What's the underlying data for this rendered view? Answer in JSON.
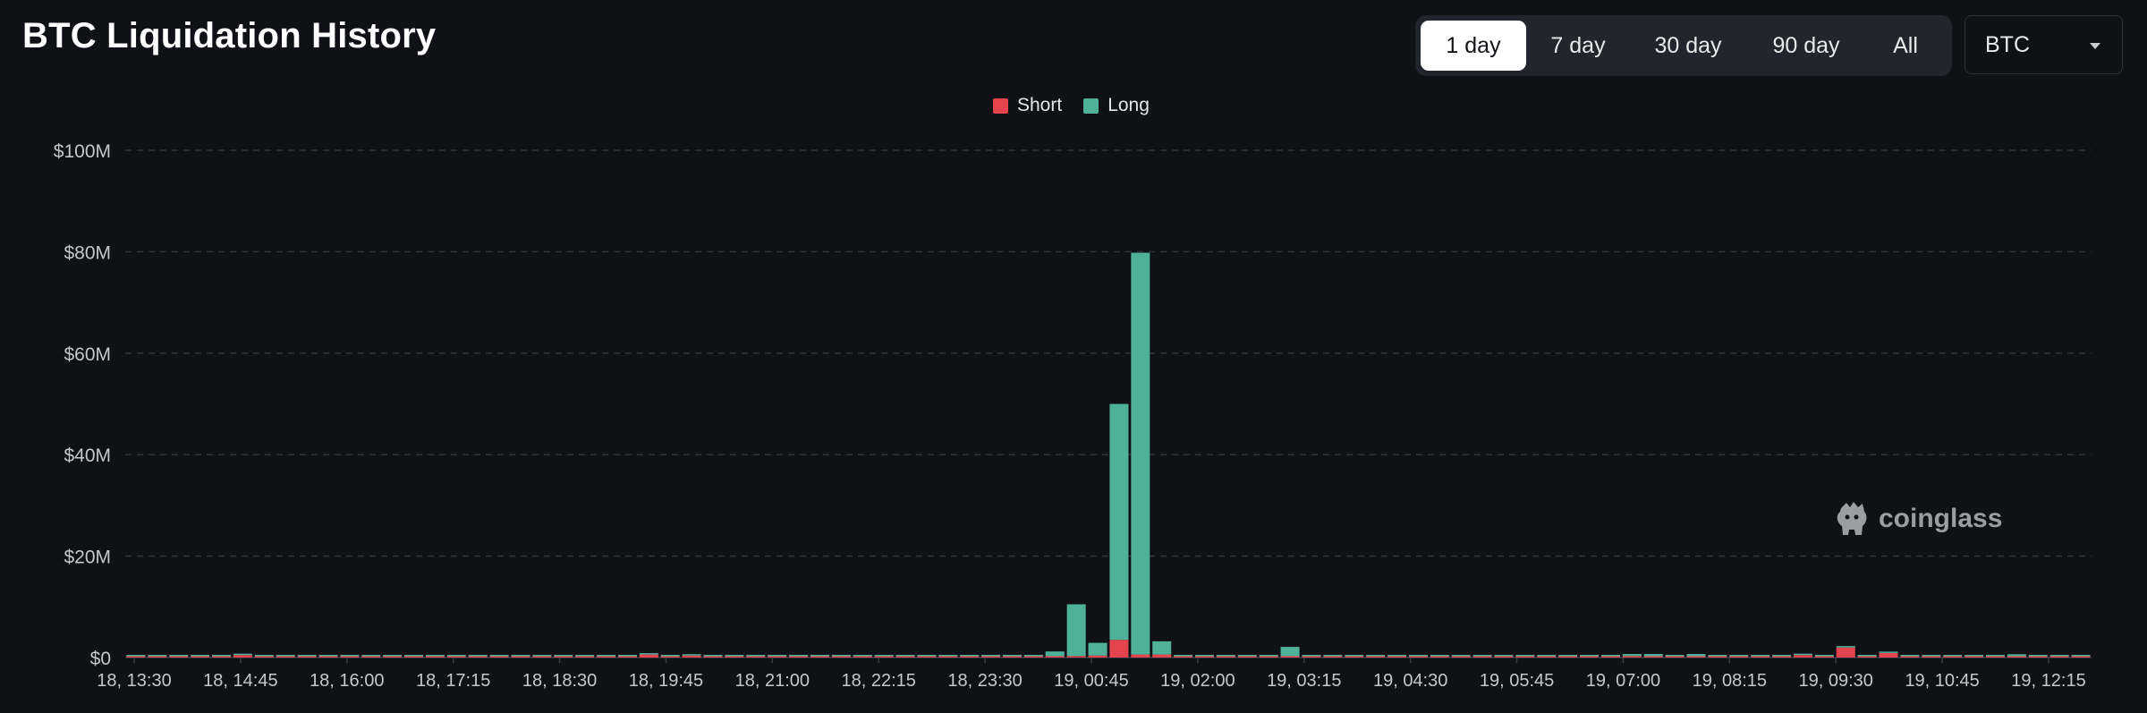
{
  "page": {
    "title": "BTC Liquidation History"
  },
  "range_options": [
    "1 day",
    "7 day",
    "30 day",
    "90 day",
    "All"
  ],
  "range_selected": "1 day",
  "coin_select": {
    "value": "BTC"
  },
  "watermark": {
    "text": "coinglass"
  },
  "colors": {
    "short": "#e4444d",
    "long": "#4fb19a",
    "grid": "#2f333c",
    "axis_text": "#c5c7cc",
    "background": "#0f1116"
  },
  "chart_data": {
    "type": "bar",
    "stacked": true,
    "title": "",
    "xlabel": "",
    "ylabel": "",
    "ylim": [
      0,
      100
    ],
    "y_unit": "M",
    "y_ticks": [
      "$0",
      "$20M",
      "$40M",
      "$60M",
      "$80M",
      "$100M"
    ],
    "grid": true,
    "legend_position": "top-center",
    "x_ticks": [
      "18, 13:30",
      "18, 14:45",
      "18, 16:00",
      "18, 17:15",
      "18, 18:30",
      "18, 19:45",
      "18, 21:00",
      "18, 22:15",
      "18, 23:30",
      "19, 00:45",
      "19, 02:00",
      "19, 03:15",
      "19, 04:30",
      "19, 05:45",
      "19, 07:00",
      "19, 08:15",
      "19, 09:30",
      "19, 10:45",
      "19, 12:15"
    ],
    "categories": [
      "18, 13:30",
      "18, 13:45",
      "18, 14:00",
      "18, 14:15",
      "18, 14:30",
      "18, 14:45",
      "18, 15:00",
      "18, 15:15",
      "18, 15:30",
      "18, 15:45",
      "18, 16:00",
      "18, 16:15",
      "18, 16:30",
      "18, 16:45",
      "18, 17:00",
      "18, 17:15",
      "18, 17:30",
      "18, 17:45",
      "18, 18:00",
      "18, 18:15",
      "18, 18:30",
      "18, 18:45",
      "18, 19:00",
      "18, 19:15",
      "18, 19:30",
      "18, 19:45",
      "18, 20:00",
      "18, 20:15",
      "18, 20:30",
      "18, 20:45",
      "18, 21:00",
      "18, 21:15",
      "18, 21:30",
      "18, 21:45",
      "18, 22:00",
      "18, 22:15",
      "18, 22:30",
      "18, 22:45",
      "18, 23:00",
      "18, 23:15",
      "18, 23:30",
      "18, 23:45",
      "19, 00:00",
      "19, 00:15",
      "19, 00:30",
      "19, 00:45",
      "19, 01:00",
      "19, 01:15",
      "19, 01:30",
      "19, 01:45",
      "19, 02:00",
      "19, 02:15",
      "19, 02:30",
      "19, 02:45",
      "19, 03:00",
      "19, 03:15",
      "19, 03:30",
      "19, 03:45",
      "19, 04:00",
      "19, 04:15",
      "19, 04:30",
      "19, 04:45",
      "19, 05:00",
      "19, 05:15",
      "19, 05:30",
      "19, 05:45",
      "19, 06:00",
      "19, 06:15",
      "19, 06:30",
      "19, 06:45",
      "19, 07:00",
      "19, 07:15",
      "19, 07:30",
      "19, 07:45",
      "19, 08:00",
      "19, 08:15",
      "19, 08:30",
      "19, 08:45",
      "19, 09:00",
      "19, 09:15",
      "19, 09:30",
      "19, 09:45",
      "19, 10:00",
      "19, 10:15",
      "19, 10:30",
      "19, 10:45",
      "19, 11:00",
      "19, 11:15",
      "19, 11:30",
      "19, 11:45",
      "19, 12:00",
      "19, 12:15"
    ],
    "series": [
      {
        "name": "Short",
        "values": [
          0.03,
          0.05,
          0.05,
          0.05,
          0.1,
          0.5,
          0.1,
          0.05,
          0.03,
          0.03,
          0.03,
          0.03,
          0.02,
          0.02,
          0.02,
          0.02,
          0.02,
          0.02,
          0.03,
          0.03,
          0.05,
          0.1,
          0.1,
          0.2,
          0.6,
          0.2,
          0.4,
          0.1,
          0.05,
          0.05,
          0.1,
          0.05,
          0.05,
          0.03,
          0.03,
          0.05,
          0.05,
          0.05,
          0.1,
          0.1,
          0.1,
          0.1,
          0.2,
          0.2,
          0.3,
          0.4,
          3.5,
          0.6,
          0.6,
          0.2,
          0.1,
          0.1,
          0.05,
          0.05,
          0.1,
          0.2,
          0.05,
          0.05,
          0.05,
          0.05,
          0.05,
          0.05,
          0.03,
          0.05,
          0.05,
          0.1,
          0.05,
          0.1,
          0.05,
          0.05,
          0.3,
          0.2,
          0.1,
          0.1,
          0.1,
          0.05,
          0.05,
          0.1,
          0.5,
          0.1,
          2.0,
          0.2,
          0.9,
          0.1,
          0.05,
          0.1,
          0.05,
          0.05,
          0.05,
          0.05,
          0.05,
          0.05
        ]
      },
      {
        "name": "Long",
        "values": [
          0.1,
          0.2,
          0.4,
          0.2,
          0.1,
          0.1,
          0.05,
          0.2,
          0.1,
          0.1,
          0.1,
          0.05,
          0.1,
          0.05,
          0.05,
          0.05,
          0.05,
          0.05,
          0.05,
          0.05,
          0.05,
          0.05,
          0.1,
          0.05,
          0.1,
          0.1,
          0.05,
          0.1,
          0.05,
          0.1,
          0.05,
          0.1,
          0.05,
          0.05,
          0.05,
          0.05,
          0.05,
          0.1,
          0.05,
          0.1,
          0.3,
          0.3,
          0.2,
          1.0,
          10.2,
          2.5,
          46.5,
          79.2,
          2.6,
          0.3,
          0.3,
          0.4,
          0.2,
          0.3,
          2.0,
          0.3,
          0.2,
          0.2,
          0.2,
          0.1,
          0.3,
          0.4,
          0.1,
          0.2,
          0.1,
          0.4,
          0.1,
          0.2,
          0.1,
          0.2,
          0.4,
          0.5,
          0.4,
          0.6,
          0.2,
          0.1,
          0.2,
          0.2,
          0.1,
          0.2,
          0.1,
          0.3,
          0.2,
          0.2,
          0.3,
          0.2,
          0.3,
          0.2,
          0.6,
          0.2,
          0.2,
          0.3
        ]
      }
    ]
  }
}
